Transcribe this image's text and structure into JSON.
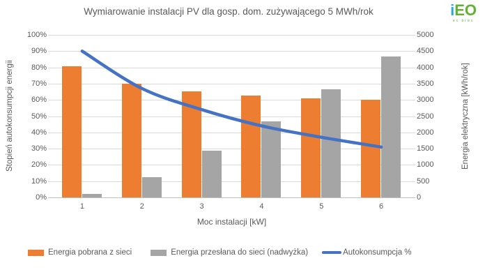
{
  "title": "Wymiarowanie instalacji PV dla gosp. dom. zużywającego 5 MWh/rok",
  "logo": {
    "text_i": "i",
    "text_eo": "EO",
    "subtext": "ec brec"
  },
  "chart_data": {
    "type": "bar+line",
    "categories": [
      "1",
      "2",
      "3",
      "4",
      "5",
      "6"
    ],
    "bar_series": [
      {
        "name": "Energia pobrana z sieci",
        "color": "#ED7D31",
        "axis": "right",
        "values": [
          4030,
          3500,
          3260,
          3130,
          3050,
          3000
        ]
      },
      {
        "name": "Energia przesłana do sieci (nadwyżka)",
        "color": "#A5A5A5",
        "axis": "right",
        "values": [
          100,
          630,
          1430,
          2350,
          3330,
          4340
        ]
      }
    ],
    "line_series": {
      "name": "Autokonsumpcja %",
      "color": "#4472C4",
      "axis": "left",
      "values": [
        90,
        67,
        54,
        44,
        37,
        31
      ]
    },
    "left_axis": {
      "title": "Stopień autokonsumpcji energii",
      "min": 0,
      "max": 100,
      "step": 10,
      "suffix": "%"
    },
    "right_axis": {
      "title": "Energia elektryczna [kWh/rok]",
      "min": 0,
      "max": 5000,
      "step": 500,
      "suffix": ""
    },
    "x_axis": {
      "title": "Moc instalacji [kW]"
    },
    "grid": true,
    "legend_position": "bottom",
    "colors": {
      "grid": "#D9D9D9",
      "axis_line": "#BFBFBF",
      "text": "#595959"
    }
  }
}
